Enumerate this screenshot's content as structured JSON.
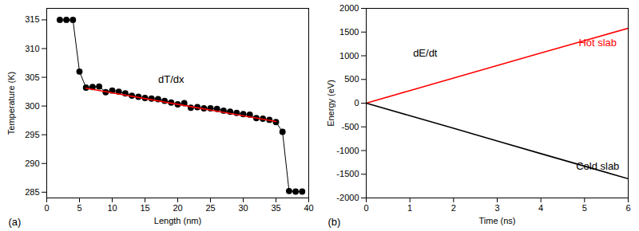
{
  "chart_data": [
    {
      "type": "line",
      "panel_label": "(a)",
      "x_label": "Length (nm)",
      "y_label": "Temperature (K)",
      "xlim": [
        0,
        40
      ],
      "xticks": [
        0,
        5,
        10,
        15,
        20,
        25,
        30,
        35,
        40
      ],
      "ylim": [
        284,
        317
      ],
      "yticks": [
        285,
        290,
        295,
        300,
        305,
        310,
        315
      ],
      "series": [
        {
          "x": [
            2,
            3,
            4,
            5,
            6,
            7,
            8,
            9,
            10,
            11,
            12,
            13,
            14,
            15,
            16,
            17,
            18,
            19,
            20,
            21,
            22,
            23,
            24,
            25,
            26,
            27,
            28,
            29,
            30,
            31,
            32,
            33,
            34,
            35,
            36,
            37,
            38,
            39
          ],
          "values": [
            315,
            315,
            315,
            306,
            303.2,
            303.3,
            303.4,
            302.4,
            302.7,
            302.5,
            302.2,
            301.8,
            301.6,
            301.4,
            301.3,
            301.2,
            300.9,
            300.6,
            300.3,
            300.5,
            299.7,
            299.8,
            299.6,
            299.6,
            299.5,
            299.2,
            299,
            298.8,
            298.6,
            298.5,
            297.9,
            297.8,
            297.6,
            297.2,
            295.5,
            285.2,
            285.1,
            285.1
          ],
          "color": "#000000",
          "marker": "circle",
          "line_style": "solid"
        },
        {
          "x": [
            6,
            35
          ],
          "values": [
            303.1,
            297.3
          ],
          "color": "#ff0000",
          "marker": "none",
          "line_style": "solid"
        }
      ],
      "annotations": [
        {
          "text": "dT/dx",
          "x": 19,
          "y": 304.6,
          "color": "#000000"
        }
      ]
    },
    {
      "type": "line",
      "panel_label": "(b)",
      "x_label": "Time (ns)",
      "y_label": "Energy (eV)",
      "xlim": [
        0,
        6
      ],
      "xticks": [
        0,
        1,
        2,
        3,
        4,
        5,
        6
      ],
      "ylim": [
        -2000,
        2000
      ],
      "yticks": [
        -2000,
        -1500,
        -1000,
        -500,
        0,
        500,
        1000,
        1500,
        2000
      ],
      "series": [
        {
          "x": [
            0,
            1,
            2,
            3,
            4,
            5,
            6
          ],
          "values": [
            0,
            265,
            530,
            795,
            1060,
            1320,
            1580
          ],
          "color": "#ff0000",
          "marker": "none",
          "line_style": "solid"
        },
        {
          "x": [
            0,
            1,
            2,
            3,
            4,
            5,
            6
          ],
          "values": [
            0,
            -265,
            -530,
            -800,
            -1065,
            -1330,
            -1595
          ],
          "color": "#000000",
          "marker": "none",
          "line_style": "solid"
        }
      ],
      "annotations": [
        {
          "text": "dE/dt",
          "x": 1.35,
          "y": 1060,
          "color": "#000000"
        },
        {
          "text": "Hot slab",
          "x": 5.3,
          "y": 1270,
          "color": "#ff0000"
        },
        {
          "text": "Cold slab",
          "x": 5.3,
          "y": -1340,
          "color": "#000000"
        }
      ]
    }
  ]
}
